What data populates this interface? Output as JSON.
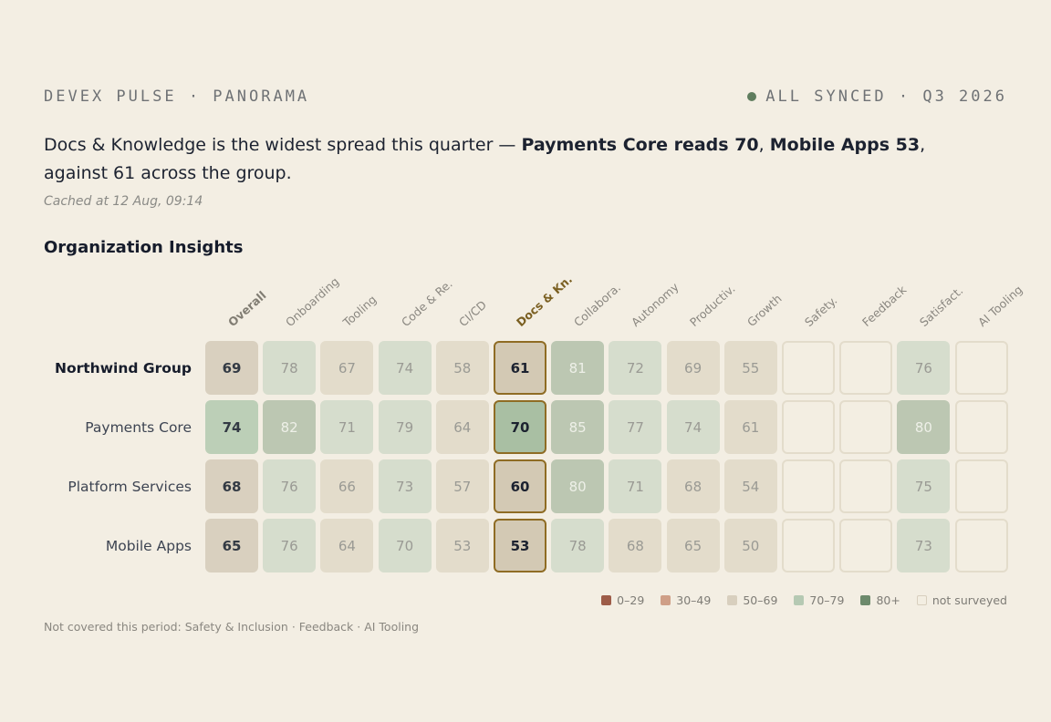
{
  "header": {
    "brand": "DEVEX PULSE · PANORAMA",
    "status": "ALL SYNCED · Q3 2026"
  },
  "headline": {
    "part1": "Docs & Knowledge is the widest spread this quarter — ",
    "bold1": "Payments Core reads 70",
    "sep": ", ",
    "bold2": "Mobile Apps 53",
    "part2": ", against 61 across the group."
  },
  "cached": "Cached at 12 Aug, 09:14",
  "section_title": "Organization Insights",
  "columns": [
    "Overall",
    "Onboarding",
    "Tooling",
    "Code & Re.",
    "CI/CD",
    "Docs & Kn.",
    "Collabora.",
    "Autonomy",
    "Productiv.",
    "Growth",
    "Safety.",
    "Feedback",
    "Satisfact.",
    "AI Tooling"
  ],
  "rows": [
    {
      "label": "Northwind Group",
      "values": [
        "69",
        "78",
        "67",
        "74",
        "58",
        "61",
        "81",
        "72",
        "69",
        "55",
        "",
        "",
        "76",
        ""
      ]
    },
    {
      "label": "Payments Core",
      "values": [
        "74",
        "82",
        "71",
        "79",
        "64",
        "70",
        "85",
        "77",
        "74",
        "61",
        "",
        "",
        "80",
        ""
      ]
    },
    {
      "label": "Platform Services",
      "values": [
        "68",
        "76",
        "66",
        "73",
        "57",
        "60",
        "80",
        "71",
        "68",
        "54",
        "",
        "",
        "75",
        ""
      ]
    },
    {
      "label": "Mobile Apps",
      "values": [
        "65",
        "76",
        "64",
        "70",
        "53",
        "53",
        "78",
        "68",
        "65",
        "50",
        "",
        "",
        "73",
        ""
      ]
    }
  ],
  "legend": [
    {
      "label": "0–29",
      "color": "#9d5c48"
    },
    {
      "label": "30–49",
      "color": "#cf9f87"
    },
    {
      "label": "50–69",
      "color": "#d8cfbe"
    },
    {
      "label": "70–79",
      "color": "#b5c9b3"
    },
    {
      "label": "80+",
      "color": "#6d8a6c"
    },
    {
      "label": "not surveyed",
      "color": "#f3eee2"
    }
  ],
  "footnote": "Not covered this period: Safety & Inclusion · Feedback · AI Tooling"
}
